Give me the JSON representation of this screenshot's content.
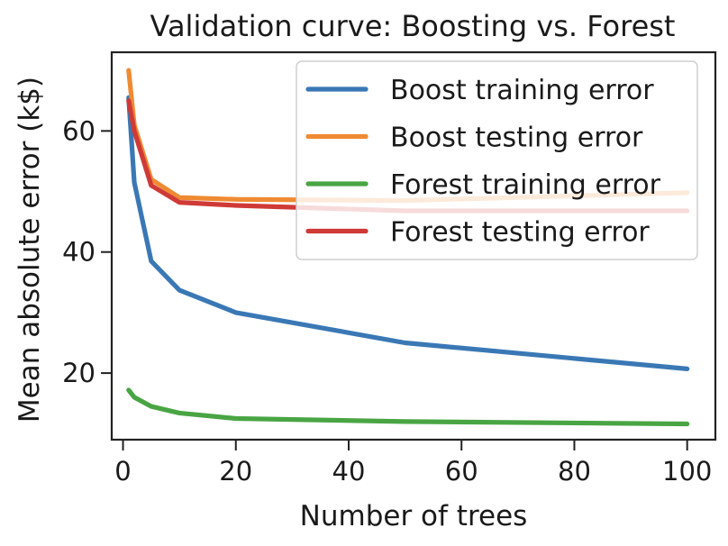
{
  "chart_data": {
    "type": "line",
    "title": "Validation curve: Boosting vs. Forest",
    "xlabel": "Number of trees",
    "ylabel": "Mean absolute error (k$)",
    "xlim": [
      -2,
      105
    ],
    "ylim": [
      9,
      73
    ],
    "xticks": [
      0,
      20,
      40,
      60,
      80,
      100
    ],
    "yticks": [
      20,
      40,
      60
    ],
    "grid": false,
    "legend_position": "top-right",
    "x": [
      1,
      2,
      5,
      10,
      20,
      50,
      100
    ],
    "series": [
      {
        "name": "Boost training error",
        "color": "#3a78b5",
        "values": [
          65.5,
          51.5,
          38.5,
          33.7,
          30.0,
          25.0,
          20.7
        ]
      },
      {
        "name": "Boost testing error",
        "color": "#ef8a33",
        "values": [
          70.0,
          61.0,
          52.0,
          49.0,
          48.7,
          48.5,
          49.8
        ]
      },
      {
        "name": "Forest training error",
        "color": "#49a543",
        "values": [
          17.2,
          16.0,
          14.5,
          13.4,
          12.5,
          12.0,
          11.6
        ]
      },
      {
        "name": "Forest testing error",
        "color": "#cf3a37",
        "values": [
          65.0,
          60.0,
          51.0,
          48.2,
          47.7,
          46.8,
          46.8
        ]
      }
    ]
  }
}
